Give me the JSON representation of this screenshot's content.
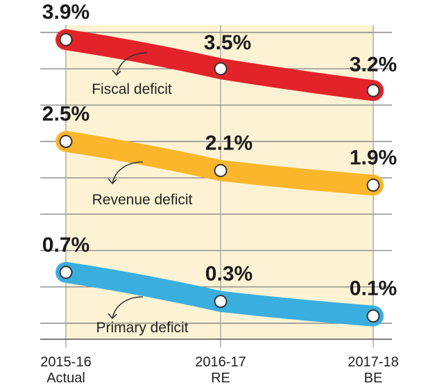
{
  "chart_data": {
    "type": "line",
    "categories": [
      "2015-16",
      "2016-17",
      "2017-18"
    ],
    "category_sublabels": [
      "Actual",
      "RE",
      "BE"
    ],
    "ylim": [
      0,
      4.2
    ],
    "grid": true,
    "series": [
      {
        "name": "Fiscal deficit",
        "values": [
          3.9,
          3.5,
          3.2
        ],
        "labels": [
          "3.9%",
          "3.5%",
          "3.2%"
        ],
        "color": "#e3232a"
      },
      {
        "name": "Revenue deficit",
        "values": [
          2.5,
          2.1,
          1.9
        ],
        "labels": [
          "2.5%",
          "2.1%",
          "1.9%"
        ],
        "color": "#fbb62b"
      },
      {
        "name": "Primary  deficit",
        "values": [
          0.7,
          0.3,
          0.1
        ],
        "labels": [
          "0.7%",
          "0.3%",
          "0.1%"
        ],
        "color": "#3aaedf"
      }
    ],
    "background_color": "#fdf3d4",
    "grid_color": "#8a8a8a"
  }
}
